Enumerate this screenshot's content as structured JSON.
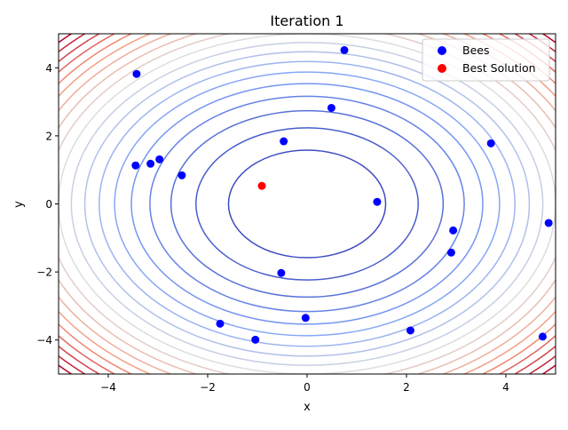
{
  "chart_data": {
    "type": "scatter",
    "title": "Iteration 1",
    "xlabel": "x",
    "ylabel": "y",
    "xlim": [
      -5,
      5
    ],
    "ylim": [
      -5,
      5
    ],
    "xticks": [
      -4,
      -2,
      0,
      2,
      4
    ],
    "yticks": [
      -4,
      -2,
      0,
      2,
      4
    ],
    "xtick_labels": [
      "−4",
      "−2",
      "0",
      "2",
      "4"
    ],
    "ytick_labels": [
      "−4",
      "−2",
      "0",
      "2",
      "4"
    ],
    "grid": false,
    "legend_position": "upper right",
    "background_contour": {
      "function": "x^2 + y^2",
      "colormap": "coolwarm",
      "levels": [
        2.5,
        5,
        7.5,
        10,
        12.5,
        15,
        17.5,
        20,
        22.5,
        25,
        27.5,
        30,
        32.5,
        35,
        37.5,
        40,
        42.5,
        45,
        47.5
      ]
    },
    "series": [
      {
        "name": "Bees",
        "color": "#0000ff",
        "points": [
          [
            0.75,
            4.52
          ],
          [
            -3.43,
            3.82
          ],
          [
            0.49,
            2.82
          ],
          [
            -0.47,
            1.84
          ],
          [
            3.7,
            1.78
          ],
          [
            -3.45,
            1.13
          ],
          [
            -3.15,
            1.18
          ],
          [
            -2.97,
            1.31
          ],
          [
            -2.52,
            0.84
          ],
          [
            1.41,
            0.06
          ],
          [
            4.86,
            -0.56
          ],
          [
            2.94,
            -0.78
          ],
          [
            2.9,
            -1.43
          ],
          [
            -0.52,
            -2.03
          ],
          [
            -0.03,
            -3.35
          ],
          [
            -1.75,
            -3.52
          ],
          [
            2.08,
            -3.72
          ],
          [
            -1.04,
            -3.99
          ],
          [
            4.74,
            -3.9
          ]
        ]
      },
      {
        "name": "Best Solution",
        "color": "#ff0000",
        "points": [
          [
            -0.91,
            0.53
          ]
        ]
      }
    ]
  },
  "legend": {
    "items": [
      {
        "label": "Bees",
        "color": "#0000ff"
      },
      {
        "label": "Best Solution",
        "color": "#ff0000"
      }
    ]
  }
}
